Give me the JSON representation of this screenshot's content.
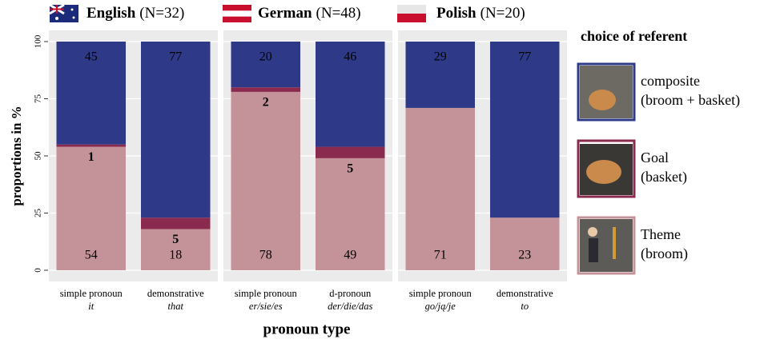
{
  "chart_data": {
    "type": "bar",
    "stacked": true,
    "ylabel": "proportions in %",
    "xlabel": "pronoun type",
    "legend_title": "choice of referent",
    "ylim": [
      0,
      100
    ],
    "yticks": [
      0,
      25,
      50,
      75,
      100
    ],
    "grid": true,
    "facets": [
      {
        "language": "English",
        "n": "(N=32)",
        "categories": [
          {
            "label": "simple pronoun",
            "word": "it"
          },
          {
            "label": "demonstrative",
            "word": "that"
          }
        ]
      },
      {
        "language": "German",
        "n": "(N=48)",
        "categories": [
          {
            "label": "simple pronoun",
            "word": "er/sie/es"
          },
          {
            "label": "d-pronoun",
            "word": "der/die/das"
          }
        ]
      },
      {
        "language": "Polish",
        "n": "(N=20)",
        "categories": [
          {
            "label": "simple pronoun",
            "word": "go/ją/je"
          },
          {
            "label": "demonstrative",
            "word": "to"
          }
        ]
      }
    ],
    "series": [
      {
        "name": "Theme",
        "detail": "(broom)",
        "color": "#c4939a",
        "label_color": "#ffffff",
        "values": [
          [
            54,
            18
          ],
          [
            78,
            49
          ],
          [
            71,
            23
          ]
        ]
      },
      {
        "name": "Goal",
        "detail": "(basket)",
        "color": "#8b2a4f",
        "label_color": "#8b2a4f",
        "values": [
          [
            1,
            5
          ],
          [
            2,
            5
          ],
          [
            null,
            null
          ]
        ]
      },
      {
        "name": "composite",
        "detail": "(broom + basket)",
        "color": "#2e3a87",
        "label_color": "#ffffff",
        "values": [
          [
            45,
            77
          ],
          [
            20,
            46
          ],
          [
            29,
            77
          ]
        ]
      }
    ]
  }
}
